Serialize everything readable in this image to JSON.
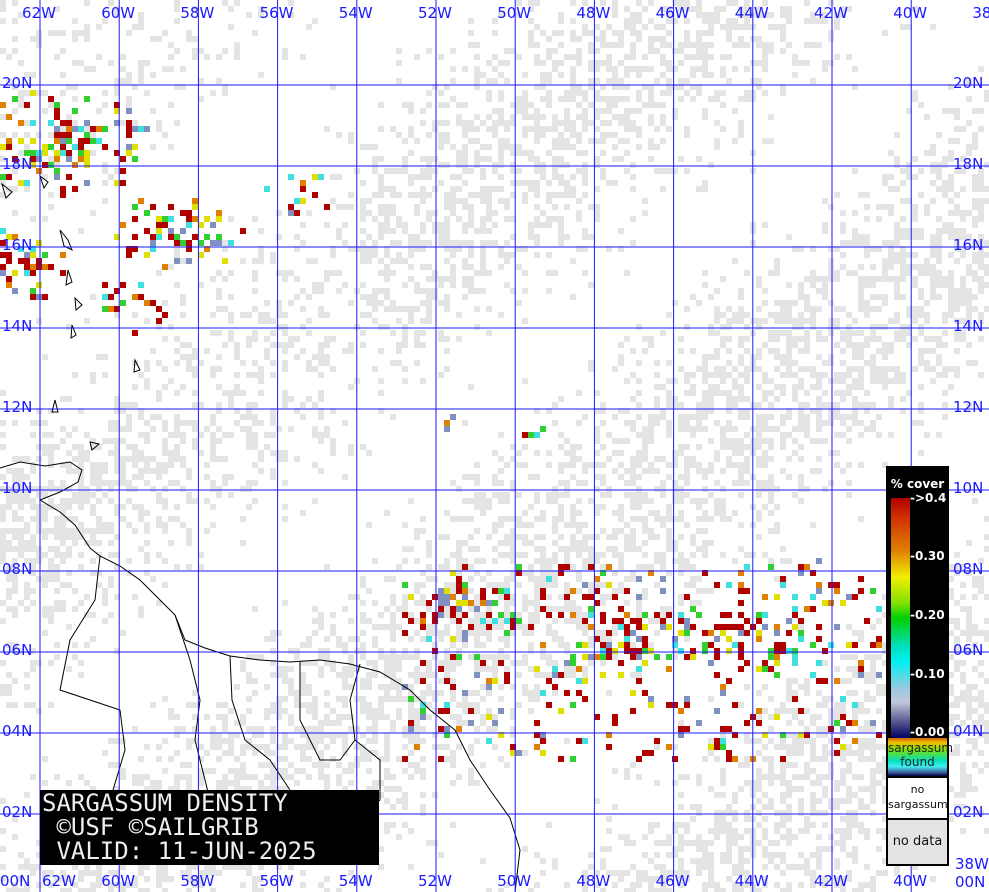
{
  "map": {
    "title_lines": [
      "SARGASSUM DENSITY",
      " ©USF ©SAILGRIB",
      " VALID: 11-JUN-2025"
    ],
    "longitude_labels": [
      "62W",
      "60W",
      "58W",
      "56W",
      "54W",
      "52W",
      "50W",
      "48W",
      "46W",
      "44W",
      "42W",
      "40W",
      "38W"
    ],
    "latitude_labels": [
      "20N",
      "18N",
      "16N",
      "14N",
      "12N",
      "10N",
      "08N",
      "06N",
      "04N",
      "02N",
      "00N"
    ],
    "colors": {
      "grid": "#1a1aff",
      "no_data": "#e4e4e4",
      "coast": "#000000",
      "high_density": "#b00000"
    }
  },
  "legend": {
    "title": "% cover",
    "ticks": [
      "->0.4",
      "-0.30",
      "-0.20",
      "-0.10",
      "-0.00"
    ],
    "found_label": "sargassum found",
    "no_sargassum_label": "no sargassum",
    "no_data_label": "no data"
  }
}
